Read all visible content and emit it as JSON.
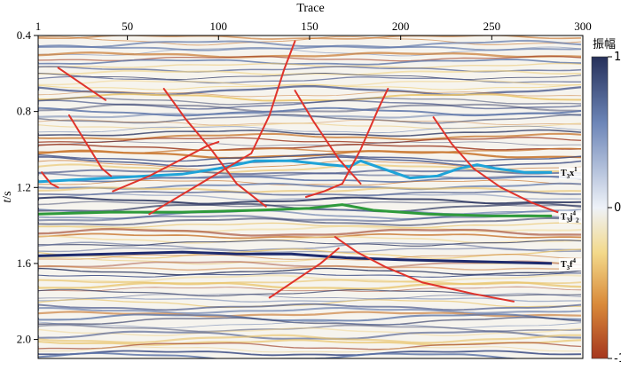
{
  "figure": {
    "x_axis_title": "Trace",
    "y_axis_title_italic": "t",
    "y_axis_title_rest": "/s",
    "colorbar_title": "振幅"
  },
  "chart_data": {
    "type": "heatmap",
    "title": "",
    "xlabel": "Trace",
    "ylabel": "t/s",
    "xlim": [
      1,
      300
    ],
    "ylim": [
      0.4,
      2.1
    ],
    "y_inverted": true,
    "x_ticks": [
      1,
      50,
      100,
      150,
      200,
      250,
      300
    ],
    "y_ticks": [
      0.4,
      0.8,
      1.2,
      1.6,
      2.0
    ],
    "colorbar": {
      "title": "振幅",
      "min": -1,
      "max": 1,
      "ticks": [
        1,
        0,
        -1
      ],
      "colors": [
        "#26305a",
        "#6d86b8",
        "#eef2f8",
        "#f3d98a",
        "#d98a3a",
        "#a5371f"
      ]
    },
    "horizons": [
      {
        "name": "T3x1",
        "label_main": "T",
        "label_sub": "3",
        "label_mid": "x",
        "label_sup": "1",
        "color": "#1fa3d8",
        "points": [
          [
            1,
            1.17
          ],
          [
            20,
            1.16
          ],
          [
            40,
            1.15
          ],
          [
            60,
            1.14
          ],
          [
            80,
            1.13
          ],
          [
            100,
            1.1
          ],
          [
            120,
            1.06
          ],
          [
            140,
            1.06
          ],
          [
            160,
            1.08
          ],
          [
            172,
            1.09
          ],
          [
            178,
            1.06
          ],
          [
            190,
            1.1
          ],
          [
            205,
            1.15
          ],
          [
            220,
            1.14
          ],
          [
            232,
            1.1
          ],
          [
            242,
            1.08
          ],
          [
            252,
            1.1
          ],
          [
            268,
            1.12
          ],
          [
            283,
            1.12
          ]
        ]
      },
      {
        "name": "T3j4",
        "label_main": "T",
        "label_sub": "3",
        "label_mid": "j",
        "label_sup": "4",
        "label_sub2": "2",
        "color": "#2e9a3b",
        "points": [
          [
            1,
            1.34
          ],
          [
            40,
            1.33
          ],
          [
            80,
            1.33
          ],
          [
            120,
            1.32
          ],
          [
            150,
            1.31
          ],
          [
            168,
            1.29
          ],
          [
            185,
            1.32
          ],
          [
            215,
            1.34
          ],
          [
            250,
            1.35
          ],
          [
            283,
            1.35
          ]
        ]
      },
      {
        "name": "T3f4",
        "label_main": "T",
        "label_sub": "3",
        "label_mid": "f",
        "label_sup": "4",
        "color": "#1e2b6e",
        "points": [
          [
            1,
            1.56
          ],
          [
            40,
            1.55
          ],
          [
            80,
            1.54
          ],
          [
            110,
            1.55
          ],
          [
            140,
            1.55
          ],
          [
            170,
            1.57
          ],
          [
            200,
            1.58
          ],
          [
            240,
            1.59
          ],
          [
            283,
            1.6
          ]
        ]
      }
    ],
    "faults": [
      {
        "points": [
          [
            12,
            0.57
          ],
          [
            38,
            0.74
          ]
        ]
      },
      {
        "points": [
          [
            18,
            0.82
          ],
          [
            27,
            0.96
          ],
          [
            36,
            1.1
          ],
          [
            41,
            1.14
          ]
        ]
      },
      {
        "points": [
          [
            3,
            1.12
          ],
          [
            8,
            1.18
          ],
          [
            12,
            1.2
          ]
        ]
      },
      {
        "points": [
          [
            42,
            1.22
          ],
          [
            62,
            1.14
          ],
          [
            80,
            1.05
          ],
          [
            94,
            0.98
          ],
          [
            100,
            0.96
          ]
        ]
      },
      {
        "points": [
          [
            70,
            0.68
          ],
          [
            82,
            0.84
          ],
          [
            96,
            1.0
          ],
          [
            110,
            1.18
          ],
          [
            126,
            1.3
          ]
        ]
      },
      {
        "points": [
          [
            62,
            1.34
          ],
          [
            90,
            1.18
          ],
          [
            118,
            1.02
          ],
          [
            128,
            0.82
          ],
          [
            136,
            0.58
          ],
          [
            142,
            0.43
          ]
        ]
      },
      {
        "points": [
          [
            142,
            0.69
          ],
          [
            152,
            0.85
          ],
          [
            166,
            1.05
          ],
          [
            178,
            1.18
          ]
        ]
      },
      {
        "points": [
          [
            148,
            1.25
          ],
          [
            158,
            1.22
          ],
          [
            168,
            1.18
          ],
          [
            178,
            1.0
          ],
          [
            188,
            0.78
          ],
          [
            193,
            0.68
          ]
        ]
      },
      {
        "points": [
          [
            218,
            0.83
          ],
          [
            228,
            0.97
          ],
          [
            240,
            1.1
          ],
          [
            255,
            1.2
          ],
          [
            272,
            1.28
          ],
          [
            286,
            1.33
          ]
        ]
      },
      {
        "points": [
          [
            128,
            1.78
          ],
          [
            142,
            1.69
          ],
          [
            156,
            1.6
          ],
          [
            166,
            1.52
          ]
        ]
      },
      {
        "points": [
          [
            164,
            1.46
          ],
          [
            176,
            1.54
          ],
          [
            192,
            1.62
          ],
          [
            212,
            1.7
          ],
          [
            240,
            1.76
          ],
          [
            262,
            1.8
          ]
        ]
      }
    ]
  }
}
